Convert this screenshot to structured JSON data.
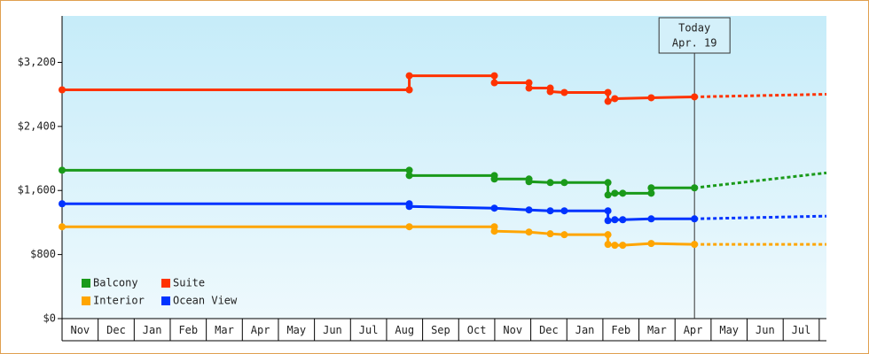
{
  "chart_data": {
    "type": "step-line",
    "xlim": [
      0,
      21.2
    ],
    "ylim": [
      0,
      3780
    ],
    "xticks": [
      {
        "value": 0.5,
        "label": "Nov"
      },
      {
        "value": 1.5,
        "label": "Dec"
      },
      {
        "value": 2.5,
        "label": "Jan"
      },
      {
        "value": 3.5,
        "label": "Feb"
      },
      {
        "value": 4.5,
        "label": "Mar"
      },
      {
        "value": 5.5,
        "label": "Apr"
      },
      {
        "value": 6.5,
        "label": "May"
      },
      {
        "value": 7.5,
        "label": "Jun"
      },
      {
        "value": 8.5,
        "label": "Jul"
      },
      {
        "value": 9.5,
        "label": "Aug"
      },
      {
        "value": 10.5,
        "label": "Sep"
      },
      {
        "value": 11.5,
        "label": "Oct"
      },
      {
        "value": 12.5,
        "label": "Nov"
      },
      {
        "value": 13.5,
        "label": "Dec"
      },
      {
        "value": 14.5,
        "label": "Jan"
      },
      {
        "value": 15.5,
        "label": "Feb"
      },
      {
        "value": 16.5,
        "label": "Mar"
      },
      {
        "value": 17.5,
        "label": "Apr"
      },
      {
        "value": 18.5,
        "label": "May"
      },
      {
        "value": 19.5,
        "label": "Jun"
      },
      {
        "value": 20.5,
        "label": "Jul"
      }
    ],
    "yticks": [
      {
        "value": 0,
        "label": "$0"
      },
      {
        "value": 800,
        "label": "$800"
      },
      {
        "value": 1600,
        "label": "$1,600"
      },
      {
        "value": 2400,
        "label": "$2,400"
      },
      {
        "value": 3200,
        "label": "$3,200"
      }
    ],
    "legend": "lower left",
    "annotation": {
      "lines": [
        "Today",
        "Apr. 19"
      ],
      "x": 17.54
    },
    "series": [
      {
        "name": "Balcony",
        "color": "#1a9a1a",
        "x": [
          0,
          9.63,
          9.63,
          11.99,
          11.99,
          12.95,
          12.95,
          13.54,
          13.93,
          15.14,
          15.14,
          15.33,
          15.55,
          16.34,
          16.34,
          17.54
        ],
        "values": [
          1853,
          1853,
          1787,
          1787,
          1743,
          1743,
          1710,
          1699,
          1699,
          1699,
          1544,
          1566,
          1566,
          1566,
          1633,
          1633
        ],
        "projection_x": [
          17.54,
          21.2
        ],
        "projection_values": [
          1633,
          1820
        ]
      },
      {
        "name": "Suite",
        "color": "#ff3300",
        "x": [
          0,
          9.63,
          9.63,
          11.99,
          11.99,
          12.95,
          12.95,
          13.54,
          13.54,
          13.93,
          15.14,
          15.14,
          15.33,
          16.34,
          17.54
        ],
        "values": [
          2857,
          2857,
          3033,
          3033,
          2945,
          2945,
          2879,
          2879,
          2835,
          2824,
          2824,
          2713,
          2747,
          2758,
          2769
        ],
        "projection_x": [
          17.54,
          21.2
        ],
        "projection_values": [
          2769,
          2802
        ]
      },
      {
        "name": "Interior",
        "color": "#ffa500",
        "x": [
          0,
          9.63,
          11.99,
          11.99,
          12.95,
          13.54,
          13.93,
          15.14,
          15.14,
          15.33,
          15.55,
          16.34,
          17.54
        ],
        "values": [
          1147,
          1147,
          1147,
          1092,
          1081,
          1059,
          1048,
          1048,
          927,
          916,
          916,
          938,
          927
        ],
        "projection_x": [
          17.54,
          21.2
        ],
        "projection_values": [
          927,
          927
        ]
      },
      {
        "name": "Ocean View",
        "color": "#0033ff",
        "x": [
          0,
          9.63,
          9.63,
          11.99,
          12.95,
          13.54,
          13.93,
          15.14,
          15.14,
          15.33,
          15.55,
          16.34,
          17.54
        ],
        "values": [
          1434,
          1434,
          1401,
          1379,
          1357,
          1346,
          1346,
          1346,
          1224,
          1235,
          1235,
          1246,
          1246
        ],
        "projection_x": [
          17.54,
          21.2
        ],
        "projection_values": [
          1246,
          1280
        ]
      }
    ]
  }
}
